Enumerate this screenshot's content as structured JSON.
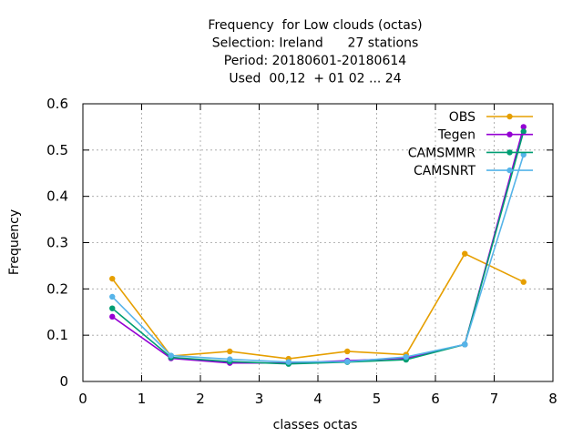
{
  "chart_data": {
    "type": "line",
    "title_lines": [
      "Frequency  for Low clouds (octas)",
      "Selection: Ireland      27 stations",
      "Period: 20180601-20180614",
      "Used  00,12  + 01 02 ... 24"
    ],
    "xlabel": "classes octas",
    "ylabel": "Frequency",
    "xlim": [
      0,
      8
    ],
    "ylim": [
      0,
      0.6
    ],
    "x_ticks": [
      "0",
      "1",
      "2",
      "3",
      "4",
      "5",
      "6",
      "7",
      "8"
    ],
    "y_ticks": [
      "0",
      "0.1",
      "0.2",
      "0.3",
      "0.4",
      "0.5",
      "0.6"
    ],
    "grid": true,
    "legend_position": "top-right",
    "x": [
      0.5,
      1.5,
      2.5,
      3.5,
      4.5,
      5.5,
      6.5,
      7.5
    ],
    "series": [
      {
        "name": "OBS",
        "color": "#e69f00",
        "values": [
          0.222,
          0.055,
          0.065,
          0.049,
          0.065,
          0.058,
          0.276,
          0.215
        ]
      },
      {
        "name": "Tegen",
        "color": "#9400d3",
        "values": [
          0.14,
          0.05,
          0.04,
          0.04,
          0.045,
          0.05,
          0.08,
          0.55
        ]
      },
      {
        "name": "CAMSMMR",
        "color": "#009e73",
        "values": [
          0.158,
          0.052,
          0.043,
          0.038,
          0.042,
          0.047,
          0.08,
          0.54
        ]
      },
      {
        "name": "CAMSNRT",
        "color": "#56b4e9",
        "values": [
          0.183,
          0.056,
          0.048,
          0.042,
          0.043,
          0.053,
          0.08,
          0.49
        ]
      }
    ]
  }
}
